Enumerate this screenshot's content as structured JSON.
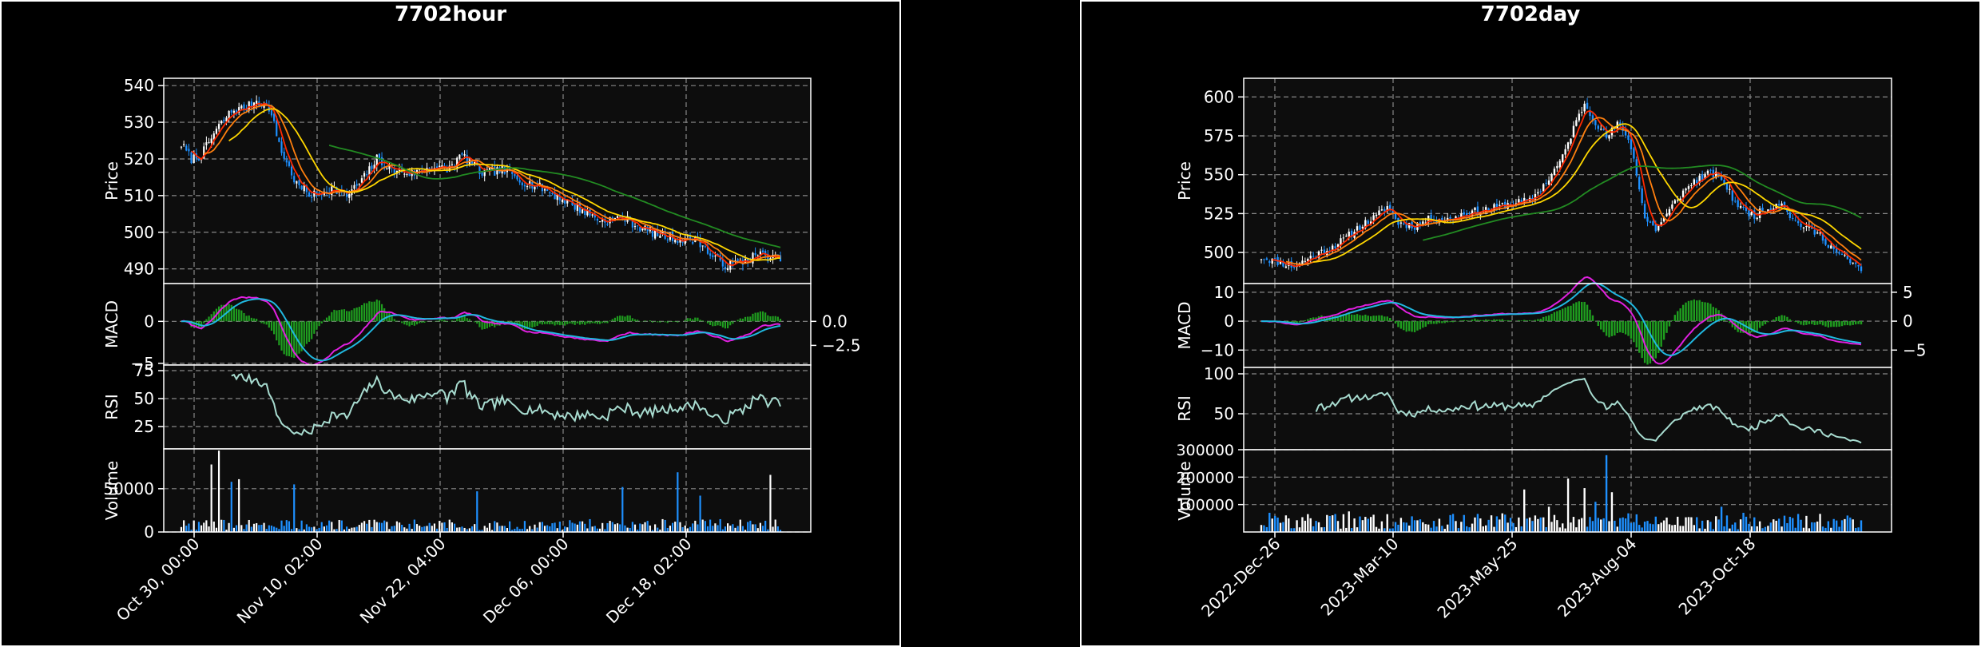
{
  "chart_data": [
    {
      "type": "candlestick",
      "title": "7702hour",
      "x_tick_labels": [
        "Oct 30, 00:00",
        "Nov 10, 02:00",
        "Nov 22, 04:00",
        "Dec 06, 00:00",
        "Dec 18, 02:00"
      ],
      "panels": {
        "price": {
          "ylabel": "Price",
          "ylim": [
            486,
            542
          ],
          "yticks": [
            490,
            500,
            510,
            520,
            530,
            540
          ],
          "close_anchors": [
            [
              0,
              524
            ],
            [
              4,
              520
            ],
            [
              8,
              521
            ],
            [
              14,
              528
            ],
            [
              20,
              533
            ],
            [
              26,
              534
            ],
            [
              30,
              536
            ],
            [
              35,
              534
            ],
            [
              40,
              522
            ],
            [
              46,
              513
            ],
            [
              52,
              510
            ],
            [
              60,
              512
            ],
            [
              66,
              510
            ],
            [
              72,
              514
            ],
            [
              78,
              520
            ],
            [
              84,
              517
            ],
            [
              92,
              516
            ],
            [
              100,
              518
            ],
            [
              106,
              517
            ],
            [
              112,
              521
            ],
            [
              120,
              516
            ],
            [
              128,
              517
            ],
            [
              136,
              514
            ],
            [
              144,
              512
            ],
            [
              152,
              509
            ],
            [
              160,
              506
            ],
            [
              168,
              503
            ],
            [
              176,
              504
            ],
            [
              184,
              501
            ],
            [
              192,
              499
            ],
            [
              200,
              498
            ],
            [
              206,
              498
            ],
            [
              212,
              493
            ],
            [
              218,
              491
            ],
            [
              224,
              492
            ],
            [
              230,
              494
            ],
            [
              236,
              493
            ]
          ],
          "ma_windows": [
            5,
            10,
            20,
            60
          ],
          "ma_colors": [
            "#ff2a00",
            "#ff7f0e",
            "#ffd700",
            "#228b22"
          ]
        },
        "macd": {
          "ylabel": "MACD",
          "left_ylim": [
            -5.2,
            4.5
          ],
          "left_ticks": [
            0,
            -5
          ],
          "right_ticks": [
            0.0,
            -2.5
          ],
          "right_tick_labels": [
            "0.0",
            "−2.5"
          ],
          "fast_period": 12,
          "slow_period": 26,
          "signal_period": 9,
          "line_color": "#e020e0",
          "signal_color": "#20b8e0",
          "hist_color": "#1f9e1f"
        },
        "rsi": {
          "ylabel": "RSI",
          "ylim": [
            5,
            80
          ],
          "yticks": [
            25,
            50,
            75
          ],
          "period": 14,
          "color": "#a8dcd0"
        },
        "volume": {
          "ylabel": "Volume",
          "ylim": [
            0,
            96000
          ],
          "yticks": [
            0,
            50000
          ],
          "base": 9000,
          "spikes": [
            [
              12,
              78000
            ],
            [
              15,
              94000
            ],
            [
              20,
              58000
            ],
            [
              23,
              61000
            ],
            [
              45,
              55000
            ],
            [
              118,
              47000
            ],
            [
              176,
              52000
            ],
            [
              198,
              69000
            ],
            [
              207,
              42000
            ],
            [
              235,
              66000
            ]
          ],
          "up_color": "#ffffff",
          "down_color": "#1e90ff"
        }
      },
      "n_bars": 240,
      "seed": 7,
      "volatility": 1.6
    },
    {
      "type": "candlestick",
      "title": "7702day",
      "x_tick_labels": [
        "2022-Dec-26",
        "2023-Mar-10",
        "2023-May-25",
        "2023-Aug-04",
        "2023-Oct-18"
      ],
      "panels": {
        "price": {
          "ylabel": "Price",
          "ylim": [
            480,
            612
          ],
          "yticks": [
            500,
            525,
            550,
            575,
            600
          ],
          "close_anchors": [
            [
              0,
              497
            ],
            [
              6,
              494
            ],
            [
              12,
              491
            ],
            [
              18,
              497
            ],
            [
              24,
              502
            ],
            [
              30,
              508
            ],
            [
              36,
              517
            ],
            [
              42,
              523
            ],
            [
              46,
              530
            ],
            [
              50,
              519
            ],
            [
              56,
              517
            ],
            [
              62,
              522
            ],
            [
              68,
              521
            ],
            [
              74,
              525
            ],
            [
              80,
              527
            ],
            [
              86,
              529
            ],
            [
              92,
              532
            ],
            [
              98,
              533
            ],
            [
              104,
              545
            ],
            [
              110,
              561
            ],
            [
              114,
              580
            ],
            [
              118,
              596
            ],
            [
              122,
              584
            ],
            [
              126,
              574
            ],
            [
              130,
              582
            ],
            [
              133,
              577
            ],
            [
              136,
              561
            ],
            [
              140,
              522
            ],
            [
              144,
              515
            ],
            [
              148,
              524
            ],
            [
              152,
              535
            ],
            [
              158,
              546
            ],
            [
              164,
              551
            ],
            [
              168,
              548
            ],
            [
              172,
              535
            ],
            [
              176,
              527
            ],
            [
              180,
              524
            ],
            [
              186,
              529
            ],
            [
              190,
              533
            ],
            [
              194,
              521
            ],
            [
              198,
              517
            ],
            [
              204,
              511
            ],
            [
              210,
              500
            ],
            [
              214,
              495
            ],
            [
              218,
              490
            ]
          ],
          "ma_windows": [
            5,
            10,
            20,
            60
          ],
          "ma_colors": [
            "#ff2a00",
            "#ff7f0e",
            "#ffd700",
            "#228b22"
          ]
        },
        "macd": {
          "ylabel": "MACD",
          "left_ylim": [
            -16,
            13
          ],
          "left_ticks": [
            10,
            0,
            -10
          ],
          "right_ticks": [
            5,
            0,
            -5
          ],
          "right_tick_labels": [
            "5",
            "0",
            "−5"
          ],
          "fast_period": 12,
          "slow_period": 26,
          "signal_period": 9,
          "line_color": "#e020e0",
          "signal_color": "#20b8e0",
          "hist_color": "#1f9e1f"
        },
        "rsi": {
          "ylabel": "RSI",
          "ylim": [
            5,
            108
          ],
          "yticks": [
            50,
            100
          ],
          "period": 14,
          "color": "#a8dcd0"
        },
        "volume": {
          "ylabel": "Volume",
          "ylim": [
            0,
            300000
          ],
          "yticks": [
            100000,
            200000,
            300000
          ],
          "base": 40000,
          "spikes": [
            [
              3,
              70000
            ],
            [
              18,
              50000
            ],
            [
              32,
              75000
            ],
            [
              46,
              65000
            ],
            [
              74,
              62000
            ],
            [
              88,
              68000
            ],
            [
              96,
              155000
            ],
            [
              105,
              92000
            ],
            [
              112,
              195000
            ],
            [
              118,
              160000
            ],
            [
              122,
              110000
            ],
            [
              126,
              280000
            ],
            [
              128,
              145000
            ],
            [
              134,
              68000
            ],
            [
              144,
              56000
            ],
            [
              168,
              92000
            ],
            [
              176,
              70000
            ],
            [
              204,
              66000
            ],
            [
              214,
              60000
            ]
          ],
          "up_color": "#ffffff",
          "down_color": "#1e90ff"
        }
      },
      "n_bars": 220,
      "seed": 11,
      "volatility": 3.2
    }
  ]
}
